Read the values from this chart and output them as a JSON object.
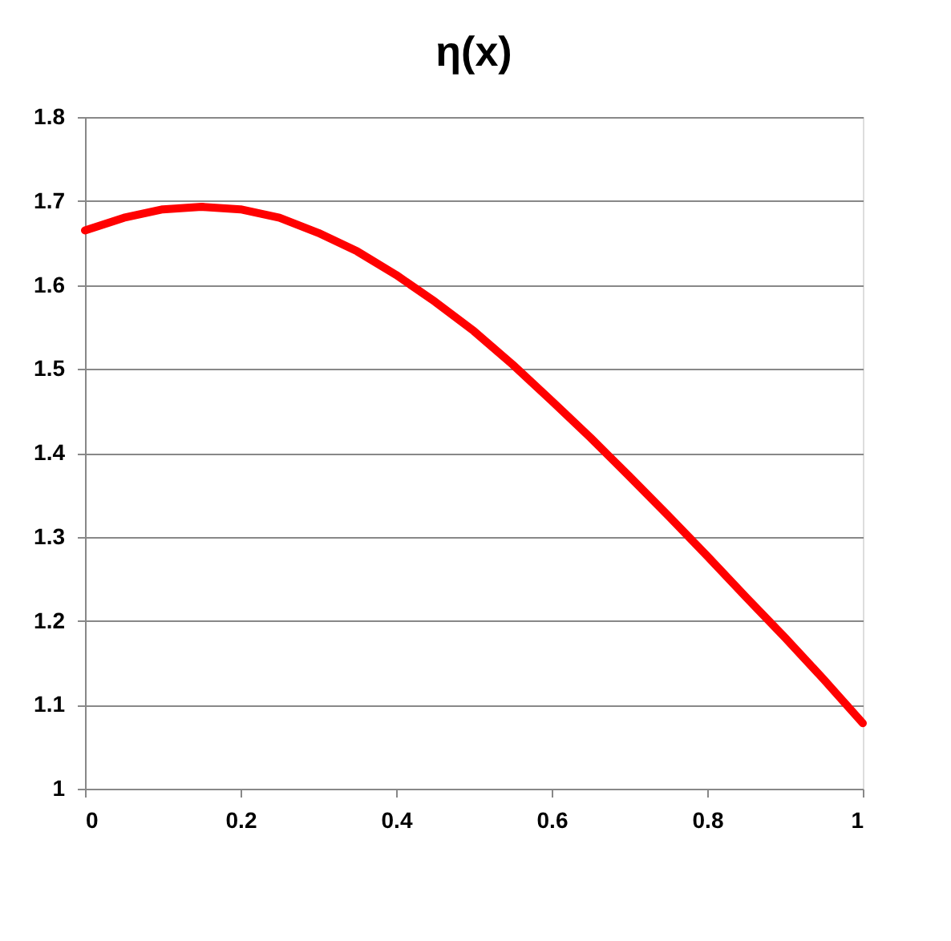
{
  "chart_data": {
    "type": "line",
    "title": "η(x)",
    "x": [
      0,
      0.05,
      0.1,
      0.15,
      0.2,
      0.25,
      0.3,
      0.35,
      0.4,
      0.45,
      0.5,
      0.55,
      0.6,
      0.65,
      0.7,
      0.75,
      0.8,
      0.85,
      0.9,
      0.95,
      1
    ],
    "series": [
      {
        "color": "#ff0000",
        "values": [
          1.665,
          1.68,
          1.69,
          1.693,
          1.69,
          1.68,
          1.662,
          1.64,
          1.612,
          1.58,
          1.545,
          1.505,
          1.462,
          1.418,
          1.372,
          1.325,
          1.277,
          1.228,
          1.18,
          1.13,
          1.078
        ]
      }
    ],
    "xlim": [
      0,
      1
    ],
    "xticks": [
      0,
      0.2,
      0.4,
      0.6,
      0.8,
      1
    ],
    "ylim": [
      1,
      1.8
    ],
    "yticks": [
      1,
      1.1,
      1.2,
      1.3,
      1.4,
      1.5,
      1.6,
      1.7,
      1.8
    ],
    "grid": "y",
    "marker": "none",
    "line_style": "solid"
  }
}
